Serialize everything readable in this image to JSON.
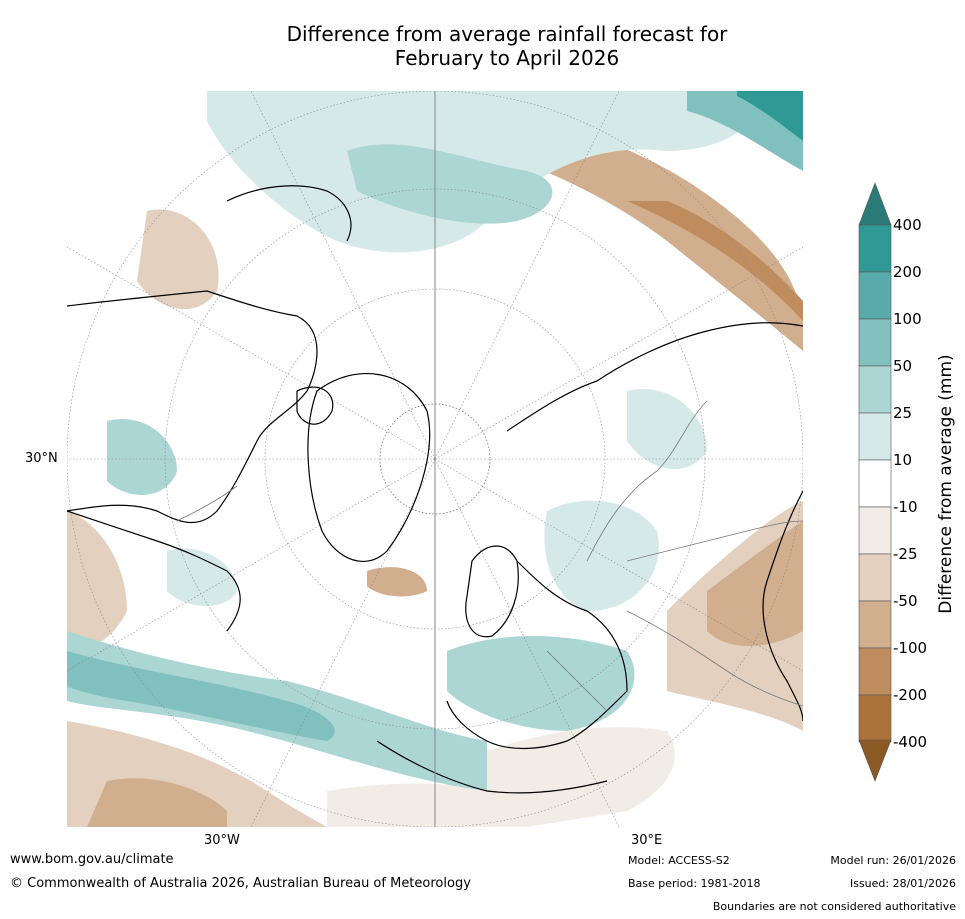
{
  "title": {
    "line1": "Difference from average rainfall forecast for",
    "line2": "February to April 2026"
  },
  "map": {
    "projection": "North polar stereographic",
    "latitude_label": "30°N",
    "longitude_labels": [
      "30°W",
      "30°E"
    ]
  },
  "legend": {
    "title": "Difference from average (mm)",
    "ticks": [
      "400",
      "200",
      "100",
      "50",
      "25",
      "10",
      "-10",
      "-25",
      "-50",
      "-100",
      "-200",
      "-400"
    ],
    "colors": {
      "top_arrow": "#2a7a78",
      "bins_top_to_bottom": [
        "#309995",
        "#59abab",
        "#80c1c0",
        "#acd6d4",
        "#d5e9e8",
        "#ffffff",
        "#f2ece6",
        "#e3d0bf",
        "#d0ae8e",
        "#bf8c5e",
        "#ab7138"
      ],
      "bottom_arrow": "#8b5a24"
    }
  },
  "footer": {
    "website": "www.bom.gov.au/climate",
    "copyright": "© Commonwealth of Australia 2026, Australian Bureau of Meteorology",
    "model": "Model: ACCESS-S2",
    "base_period": "Base period: 1981-2018",
    "model_run": "Model run: 26/01/2026",
    "issued": "Issued: 28/01/2026",
    "disclaimer": "Boundaries are not considered authoritative"
  }
}
